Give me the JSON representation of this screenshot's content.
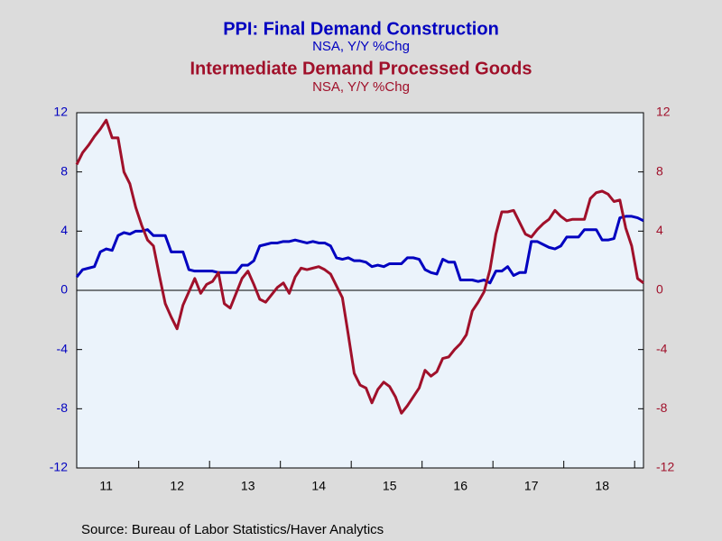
{
  "chart_data": {
    "type": "line",
    "series": [
      {
        "name": "PPI: Final Demand Construction",
        "subtitle": "NSA, Y/Y %Chg",
        "color": "#0000c0",
        "axis": "y",
        "values": [
          0.9,
          1.4,
          1.5,
          1.6,
          2.6,
          2.8,
          2.7,
          3.7,
          3.9,
          3.8,
          4.0,
          4.0,
          4.1,
          3.7,
          3.7,
          3.7,
          2.6,
          2.6,
          2.6,
          1.4,
          1.3,
          1.3,
          1.3,
          1.3,
          1.2,
          1.2,
          1.2,
          1.2,
          1.7,
          1.7,
          2.0,
          3.0,
          3.1,
          3.2,
          3.2,
          3.3,
          3.3,
          3.4,
          3.3,
          3.2,
          3.3,
          3.2,
          3.2,
          3.0,
          2.2,
          2.1,
          2.2,
          2.0,
          2.0,
          1.9,
          1.6,
          1.7,
          1.6,
          1.8,
          1.8,
          1.8,
          2.2,
          2.2,
          2.1,
          1.4,
          1.2,
          1.1,
          2.1,
          1.9,
          1.9,
          0.7,
          0.7,
          0.7,
          0.6,
          0.7,
          0.5,
          1.3,
          1.3,
          1.6,
          1.0,
          1.2,
          1.2,
          3.3,
          3.3,
          3.1,
          2.9,
          2.8,
          3.0,
          3.6,
          3.6,
          3.6,
          4.1,
          4.1,
          4.1,
          3.4,
          3.4,
          3.5,
          4.9,
          5.0,
          5.0,
          4.9,
          4.7
        ]
      },
      {
        "name": "Intermediate Demand Processed Goods",
        "subtitle": "NSA, Y/Y %Chg",
        "color": "#a0102a",
        "axis": "y2",
        "values": [
          8.5,
          9.3,
          9.8,
          10.4,
          10.9,
          11.5,
          10.3,
          10.3,
          8.0,
          7.2,
          5.6,
          4.4,
          3.4,
          3.0,
          1.0,
          -0.9,
          -1.8,
          -2.6,
          -1.0,
          -0.1,
          0.8,
          -0.2,
          0.4,
          0.6,
          1.2,
          -0.9,
          -1.2,
          -0.2,
          0.8,
          1.3,
          0.4,
          -0.6,
          -0.8,
          -0.3,
          0.2,
          0.5,
          -0.2,
          0.9,
          1.5,
          1.4,
          1.5,
          1.6,
          1.4,
          1.1,
          0.3,
          -0.5,
          -3.0,
          -5.6,
          -6.4,
          -6.6,
          -7.6,
          -6.7,
          -6.2,
          -6.5,
          -7.2,
          -8.3,
          -7.8,
          -7.2,
          -6.6,
          -5.4,
          -5.8,
          -5.5,
          -4.6,
          -4.5,
          -4.0,
          -3.6,
          -3.0,
          -1.4,
          -0.8,
          -0.1,
          1.4,
          3.8,
          5.3,
          5.3,
          5.4,
          4.6,
          3.8,
          3.6,
          4.1,
          4.5,
          4.8,
          5.4,
          5.0,
          4.7,
          4.8,
          4.8,
          4.8,
          6.2,
          6.6,
          6.7,
          6.5,
          6.0,
          6.1,
          4.2,
          3.0,
          0.8,
          0.5
        ]
      }
    ],
    "categories": [
      null,
      null,
      null,
      null,
      null,
      "11",
      null,
      null,
      null,
      null,
      null,
      null,
      null,
      null,
      null,
      null,
      null,
      "12",
      null,
      null,
      null,
      null,
      null,
      null,
      null,
      null,
      null,
      null,
      null,
      "13",
      null,
      null,
      null,
      null,
      null,
      null,
      null,
      null,
      null,
      null,
      null,
      "14",
      null,
      null,
      null,
      null,
      null,
      null,
      null,
      null,
      null,
      null,
      null,
      "15",
      null,
      null,
      null,
      null,
      null,
      null,
      null,
      null,
      null,
      null,
      null,
      "16",
      null,
      null,
      null,
      null,
      null,
      null,
      null,
      null,
      null,
      null,
      null,
      "17",
      null,
      null,
      null,
      null,
      null,
      null,
      null,
      null,
      null,
      null,
      null,
      "18",
      null,
      null,
      null,
      null,
      null,
      null,
      null
    ],
    "ylim": [
      -12,
      12
    ],
    "yticks": [
      -12,
      -8,
      -4,
      0,
      4,
      8,
      12
    ],
    "y2lim": [
      -12,
      12
    ],
    "y2ticks": [
      -12,
      -8,
      -4,
      0,
      4,
      8,
      12
    ],
    "source": "Source:  Bureau of Labor Statistics/Haver Analytics"
  }
}
